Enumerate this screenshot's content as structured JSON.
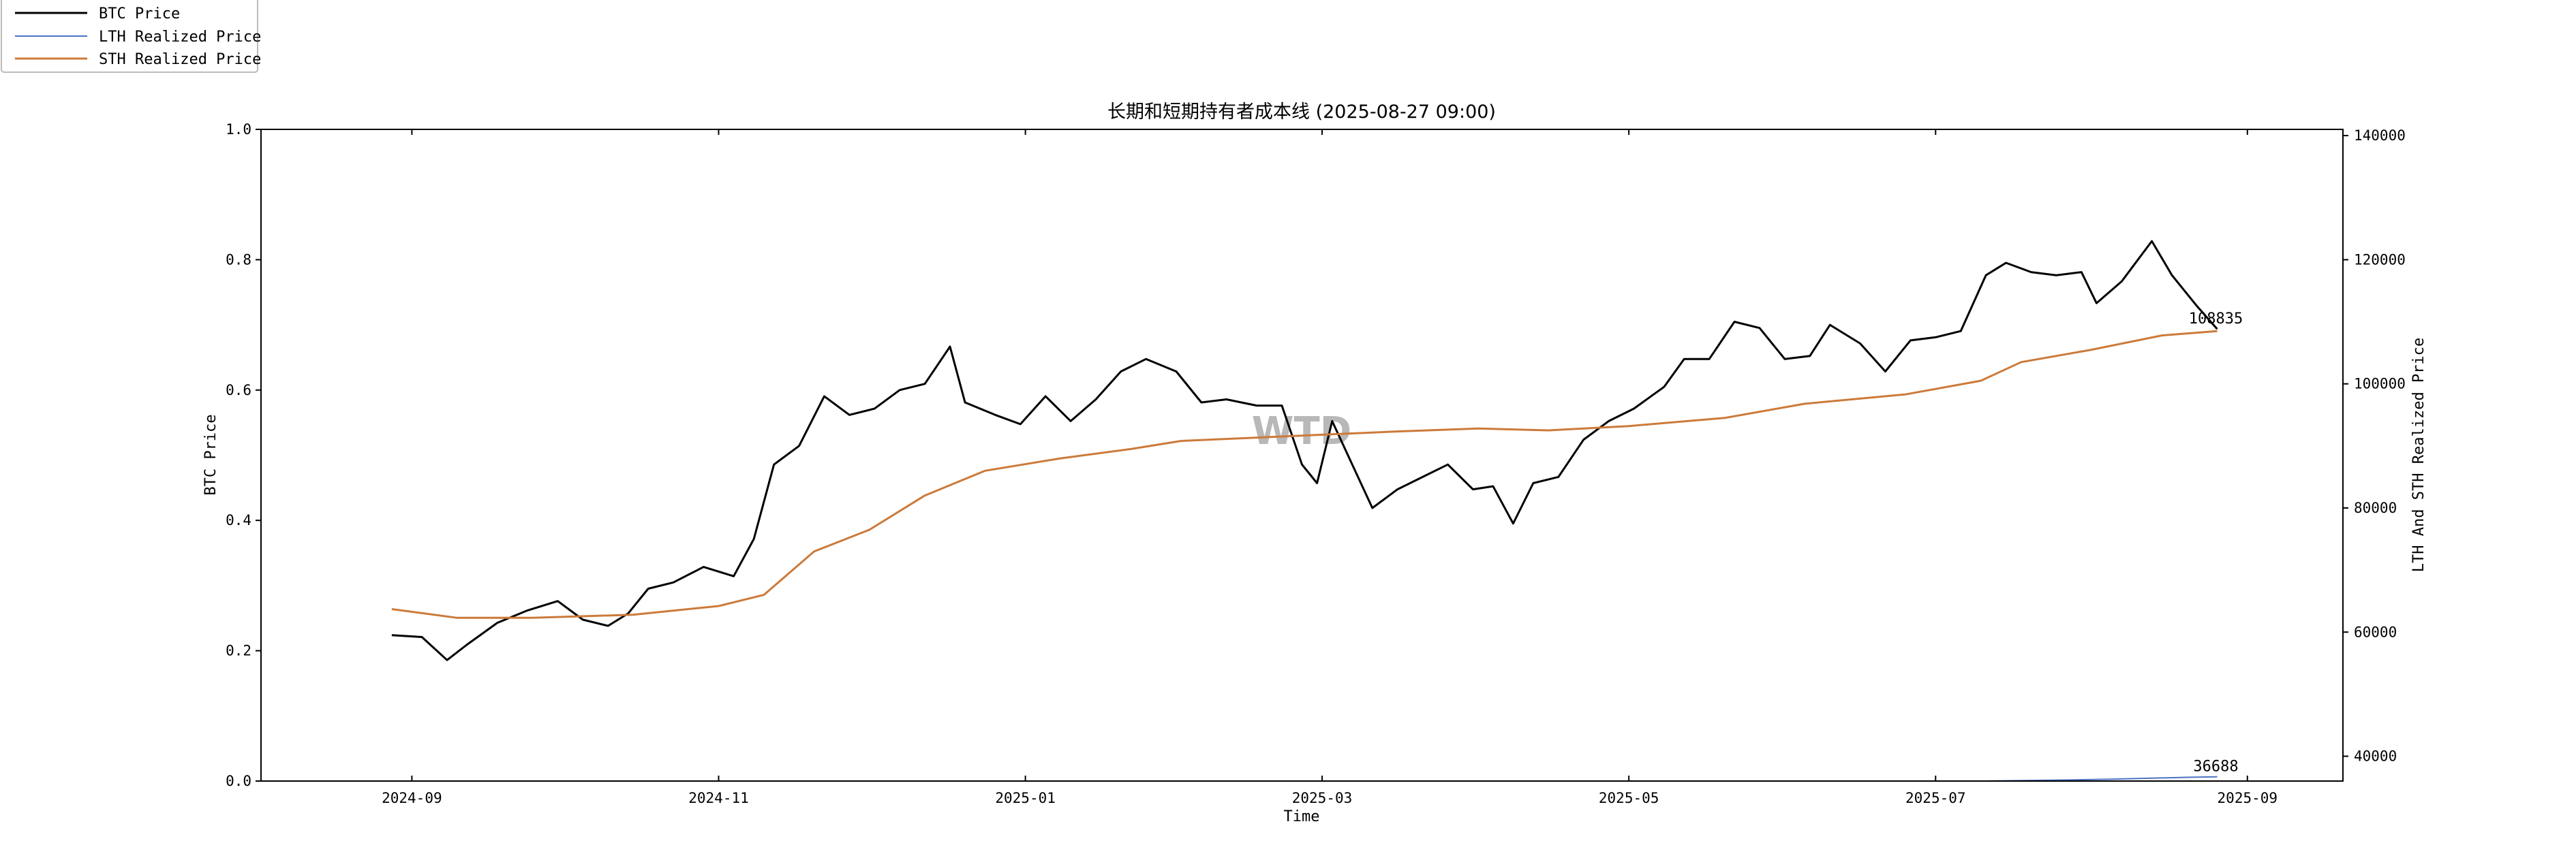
{
  "chart_data": {
    "type": "line",
    "title": "长期和短期持有者成本线 (2025-08-27 09:00)",
    "xlabel": "Time",
    "ylabel_left": "BTC Price",
    "ylabel_right": "LTH And STH Realized Price",
    "watermark": "WTD",
    "x_ticks": [
      "2024-09",
      "2024-11",
      "2025-01",
      "2025-03",
      "2025-05",
      "2025-07",
      "2025-09"
    ],
    "y_left_ticks": [
      "0.0",
      "0.2",
      "0.4",
      "0.6",
      "0.8",
      "1.0"
    ],
    "y_right_ticks": [
      "40000",
      "60000",
      "80000",
      "100000",
      "120000",
      "140000"
    ],
    "ylim_left": [
      0,
      1
    ],
    "ylim_right": [
      36000,
      141000
    ],
    "xlim": [
      "2024-08-02",
      "2025-09-20"
    ],
    "legend": {
      "placement": "top-left, outside"
    },
    "series": [
      {
        "name": "BTC Price",
        "color": "#000000",
        "points": [
          [
            "2024-08-28",
            59500
          ],
          [
            "2024-09-03",
            59200
          ],
          [
            "2024-09-08",
            55500
          ],
          [
            "2024-09-12",
            58000
          ],
          [
            "2024-09-18",
            61500
          ],
          [
            "2024-09-24",
            63500
          ],
          [
            "2024-09-30",
            65000
          ],
          [
            "2024-10-05",
            62000
          ],
          [
            "2024-10-10",
            61000
          ],
          [
            "2024-10-14",
            63000
          ],
          [
            "2024-10-18",
            67000
          ],
          [
            "2024-10-23",
            68000
          ],
          [
            "2024-10-29",
            70500
          ],
          [
            "2024-11-04",
            69000
          ],
          [
            "2024-11-08",
            75000
          ],
          [
            "2024-11-12",
            87000
          ],
          [
            "2024-11-17",
            90000
          ],
          [
            "2024-11-22",
            98000
          ],
          [
            "2024-11-27",
            95000
          ],
          [
            "2024-12-02",
            96000
          ],
          [
            "2024-12-07",
            99000
          ],
          [
            "2024-12-12",
            100000
          ],
          [
            "2024-12-17",
            106000
          ],
          [
            "2024-12-20",
            97000
          ],
          [
            "2024-12-26",
            95000
          ],
          [
            "2024-12-31",
            93500
          ],
          [
            "2025-01-05",
            98000
          ],
          [
            "2025-01-10",
            94000
          ],
          [
            "2025-01-15",
            97500
          ],
          [
            "2025-01-20",
            102000
          ],
          [
            "2025-01-25",
            104000
          ],
          [
            "2025-01-31",
            102000
          ],
          [
            "2025-02-05",
            97000
          ],
          [
            "2025-02-10",
            97500
          ],
          [
            "2025-02-16",
            96500
          ],
          [
            "2025-02-21",
            96500
          ],
          [
            "2025-02-25",
            87000
          ],
          [
            "2025-02-28",
            84000
          ],
          [
            "2025-03-03",
            94000
          ],
          [
            "2025-03-07",
            87000
          ],
          [
            "2025-03-11",
            80000
          ],
          [
            "2025-03-16",
            83000
          ],
          [
            "2025-03-21",
            85000
          ],
          [
            "2025-03-26",
            87000
          ],
          [
            "2025-03-31",
            83000
          ],
          [
            "2025-04-04",
            83500
          ],
          [
            "2025-04-08",
            77500
          ],
          [
            "2025-04-12",
            84000
          ],
          [
            "2025-04-17",
            85000
          ],
          [
            "2025-04-22",
            91000
          ],
          [
            "2025-04-27",
            94000
          ],
          [
            "2025-05-02",
            96000
          ],
          [
            "2025-05-08",
            99500
          ],
          [
            "2025-05-12",
            104000
          ],
          [
            "2025-05-17",
            104000
          ],
          [
            "2025-05-22",
            110000
          ],
          [
            "2025-05-27",
            109000
          ],
          [
            "2025-06-01",
            104000
          ],
          [
            "2025-06-06",
            104500
          ],
          [
            "2025-06-10",
            109500
          ],
          [
            "2025-06-16",
            106500
          ],
          [
            "2025-06-21",
            102000
          ],
          [
            "2025-06-26",
            107000
          ],
          [
            "2025-07-01",
            107500
          ],
          [
            "2025-07-06",
            108500
          ],
          [
            "2025-07-11",
            117500
          ],
          [
            "2025-07-15",
            119500
          ],
          [
            "2025-07-20",
            118000
          ],
          [
            "2025-07-25",
            117500
          ],
          [
            "2025-07-30",
            118000
          ],
          [
            "2025-08-02",
            113000
          ],
          [
            "2025-08-07",
            116500
          ],
          [
            "2025-08-13",
            123000
          ],
          [
            "2025-08-17",
            117500
          ],
          [
            "2025-08-22",
            112500
          ],
          [
            "2025-08-26",
            108835
          ]
        ]
      },
      {
        "name": "LTH Realized Price",
        "color": "#4c72c4",
        "points": [
          [
            "2025-07-11",
            36000
          ],
          [
            "2025-07-25",
            36150
          ],
          [
            "2025-08-05",
            36300
          ],
          [
            "2025-08-15",
            36500
          ],
          [
            "2025-08-20",
            36600
          ],
          [
            "2025-08-26",
            36688
          ]
        ]
      },
      {
        "name": "STH Realized Price",
        "color": "#cc7a3a",
        "points": [
          [
            "2024-08-28",
            63700
          ],
          [
            "2024-09-10",
            62300
          ],
          [
            "2024-09-25",
            62300
          ],
          [
            "2024-10-15",
            62800
          ],
          [
            "2024-11-01",
            64200
          ],
          [
            "2024-11-10",
            66000
          ],
          [
            "2024-11-20",
            73000
          ],
          [
            "2024-12-01",
            76500
          ],
          [
            "2024-12-12",
            82000
          ],
          [
            "2024-12-24",
            86000
          ],
          [
            "2025-01-08",
            88000
          ],
          [
            "2025-01-22",
            89500
          ],
          [
            "2025-02-01",
            90800
          ],
          [
            "2025-02-15",
            91300
          ],
          [
            "2025-03-01",
            91800
          ],
          [
            "2025-03-15",
            92300
          ],
          [
            "2025-04-01",
            92800
          ],
          [
            "2025-04-15",
            92500
          ],
          [
            "2025-05-01",
            93200
          ],
          [
            "2025-05-20",
            94500
          ],
          [
            "2025-06-05",
            96800
          ],
          [
            "2025-06-25",
            98300
          ],
          [
            "2025-07-10",
            100500
          ],
          [
            "2025-07-18",
            103500
          ],
          [
            "2025-08-01",
            105500
          ],
          [
            "2025-08-15",
            107800
          ],
          [
            "2025-08-26",
            108500
          ]
        ]
      }
    ],
    "annotations": [
      {
        "text": "108835",
        "series": "BTC Price"
      },
      {
        "text": "36688",
        "series": "LTH Realized Price"
      }
    ]
  }
}
